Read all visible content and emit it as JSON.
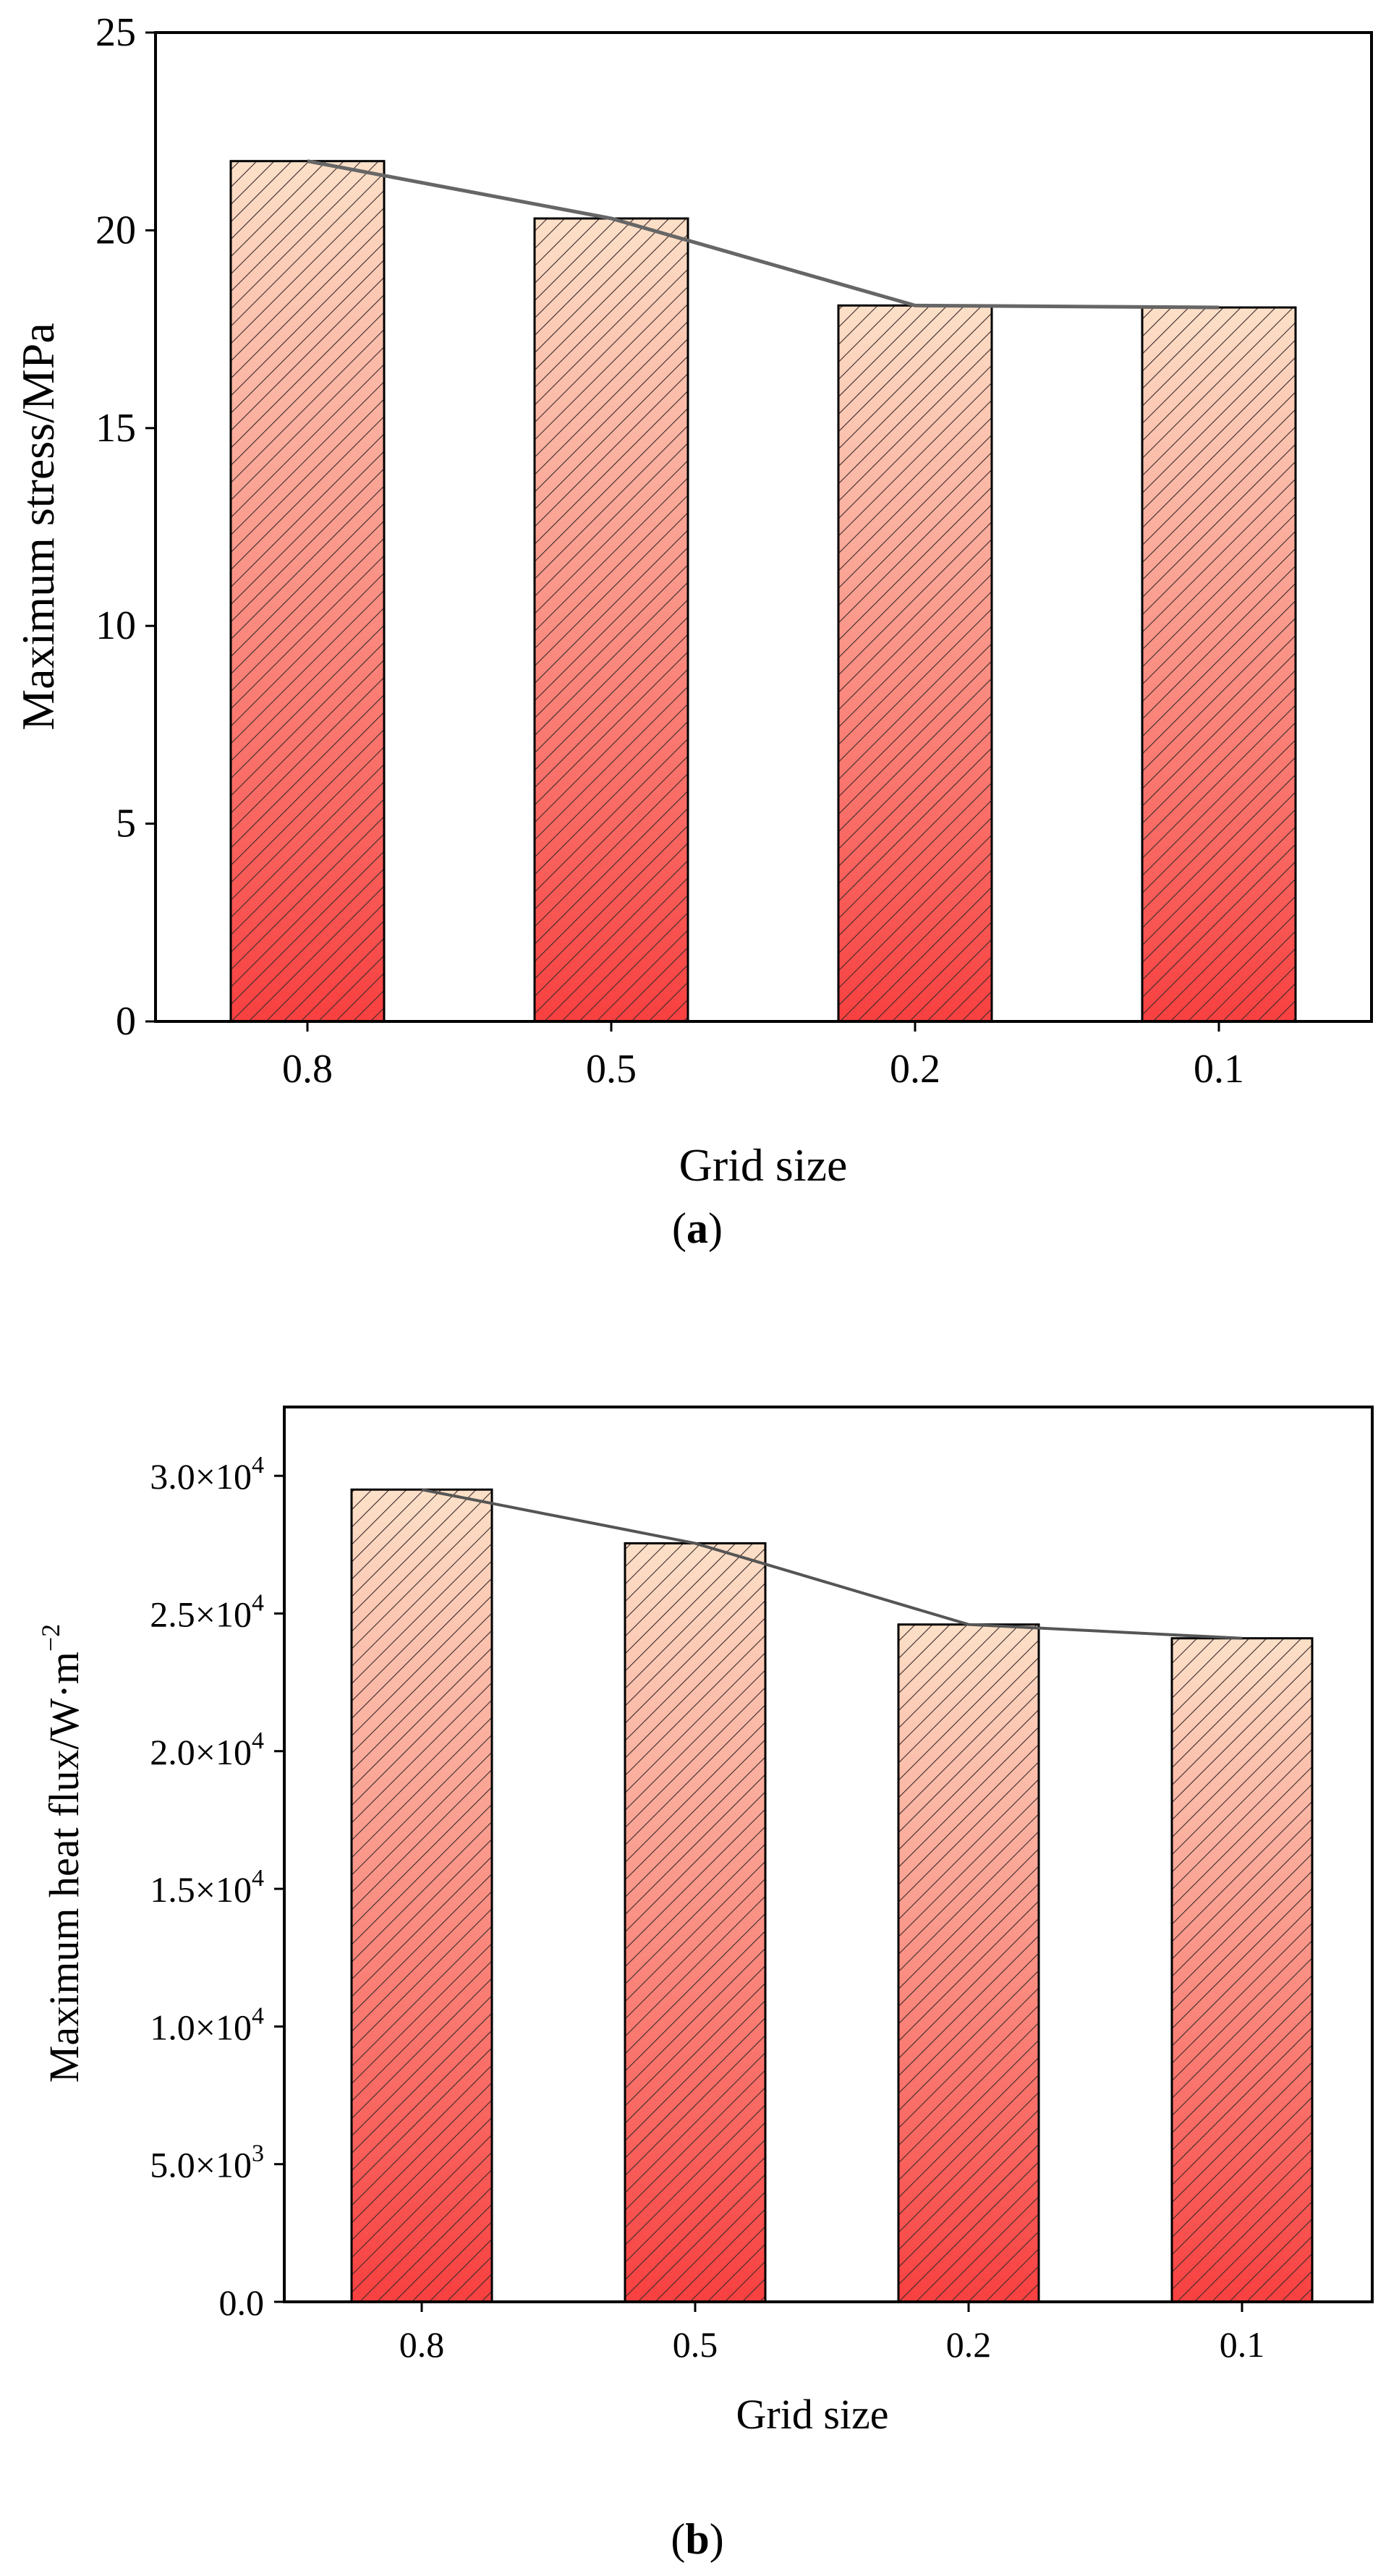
{
  "chart_data": [
    {
      "type": "bar",
      "title": "",
      "panel_label": "a",
      "xlabel": "Grid size",
      "ylabel": "Maximum stress/MPa",
      "categories": [
        "0.8",
        "0.5",
        "0.2",
        "0.1"
      ],
      "values": [
        21.75,
        20.3,
        18.1,
        18.05
      ],
      "line_values": [
        21.75,
        20.3,
        18.1,
        18.05
      ],
      "ylim": [
        0,
        25
      ],
      "yticks": [
        0,
        5,
        10,
        15,
        20,
        25
      ],
      "ytick_labels": [
        "0",
        "5",
        "10",
        "15",
        "20",
        "25"
      ],
      "grid": false,
      "colors": {
        "bar_top": "#fce0c8",
        "bar_bottom": "#f84040",
        "hatch": "#3a2a2a",
        "line": "#666666"
      }
    },
    {
      "type": "bar",
      "title": "",
      "panel_label": "b",
      "xlabel": "Grid size",
      "ylabel": "Maximum heat flux/W·m",
      "ylabel_exponent": "−2",
      "categories": [
        "0.8",
        "0.5",
        "0.2",
        "0.1"
      ],
      "values": [
        29500,
        27550,
        24600,
        24100
      ],
      "line_values": [
        29500,
        27550,
        24600,
        24100
      ],
      "ylim": [
        0,
        32500
      ],
      "yticks": [
        0,
        5000,
        10000,
        15000,
        20000,
        25000,
        30000
      ],
      "ytick_labels": [
        {
          "mantissa": "0.0",
          "exponent": ""
        },
        {
          "mantissa": "5.0×10",
          "exponent": "3"
        },
        {
          "mantissa": "1.0×10",
          "exponent": "4"
        },
        {
          "mantissa": "1.5×10",
          "exponent": "4"
        },
        {
          "mantissa": "2.0×10",
          "exponent": "4"
        },
        {
          "mantissa": "2.5×10",
          "exponent": "4"
        },
        {
          "mantissa": "3.0×10",
          "exponent": "4"
        }
      ],
      "grid": false,
      "colors": {
        "bar_top": "#fce0c8",
        "bar_bottom": "#f84040",
        "hatch": "#3a2a2a",
        "line": "#555555"
      }
    }
  ]
}
